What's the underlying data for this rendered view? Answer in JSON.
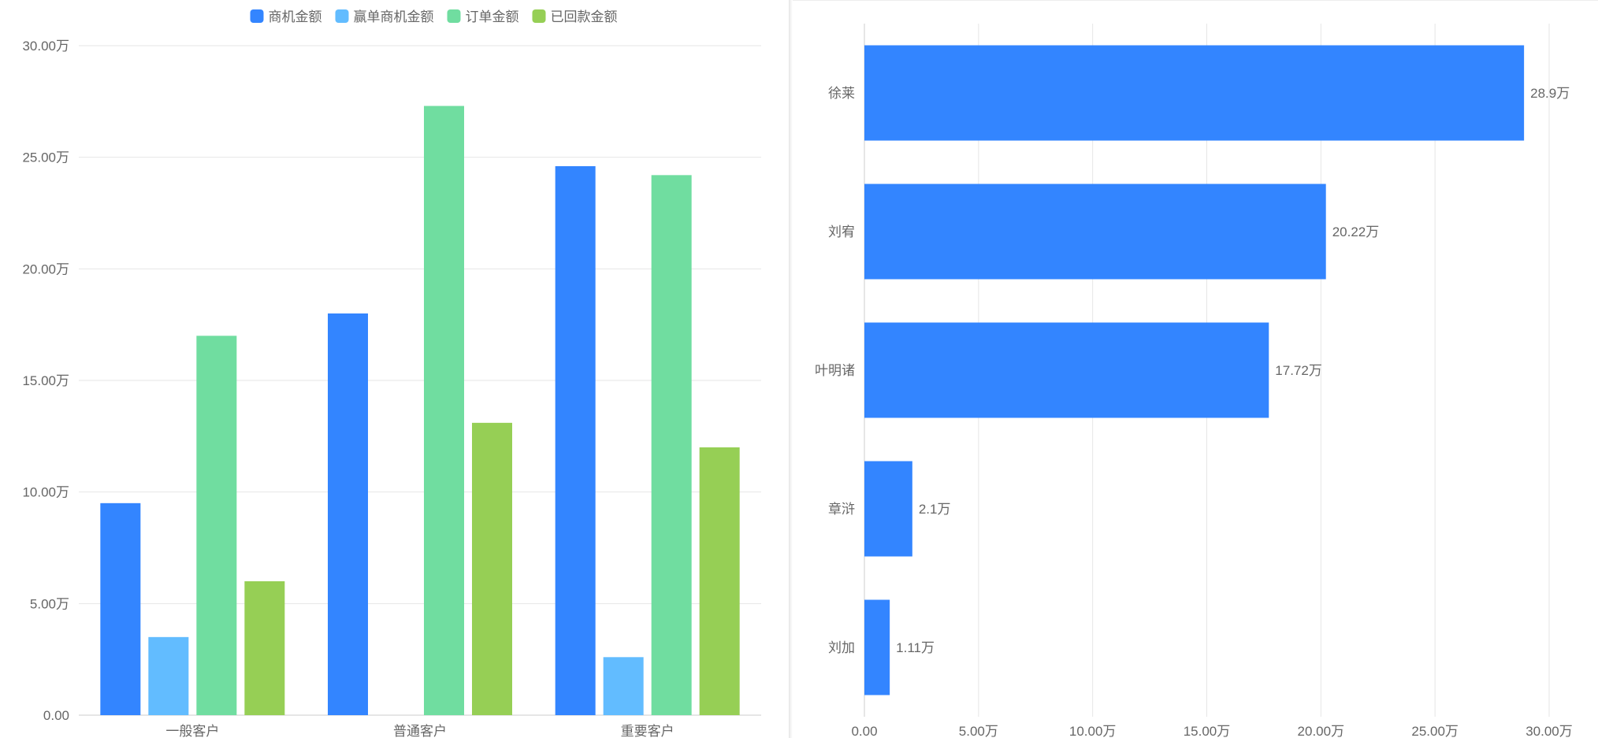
{
  "chart_data": [
    {
      "type": "bar",
      "orientation": "vertical",
      "categories": [
        "一般客户",
        "普通客户",
        "重要客户"
      ],
      "series": [
        {
          "name": "商机金额",
          "color": "#3385ff",
          "values": [
            9.5,
            18.0,
            24.6
          ]
        },
        {
          "name": "赢单商机金额",
          "color": "#62bcff",
          "values": [
            3.5,
            0,
            2.6
          ]
        },
        {
          "name": "订单金额",
          "color": "#70dda0",
          "values": [
            17.0,
            27.3,
            24.2
          ]
        },
        {
          "name": "已回款金额",
          "color": "#96cf55",
          "values": [
            6.0,
            13.1,
            12.0
          ]
        }
      ],
      "yticks": [
        "0.00",
        "5.00万",
        "10.00万",
        "15.00万",
        "20.00万",
        "25.00万",
        "30.00万"
      ],
      "ylim": [
        0,
        30
      ],
      "grid": true,
      "legend": "top-center"
    },
    {
      "type": "bar",
      "orientation": "horizontal",
      "categories": [
        "徐莱",
        "刘宥",
        "叶明诸",
        "章浒",
        "刘加"
      ],
      "values": [
        28.9,
        20.22,
        17.72,
        2.1,
        1.11
      ],
      "data_labels": [
        "28.9万",
        "20.22万",
        "17.72万",
        "2.1万",
        "1.11万"
      ],
      "color": "#3385ff",
      "xticks": [
        "0.00",
        "5.00万",
        "10.00万",
        "15.00万",
        "20.00万",
        "25.00万",
        "30.00万"
      ],
      "xlim": [
        0,
        30
      ],
      "grid": true
    }
  ]
}
